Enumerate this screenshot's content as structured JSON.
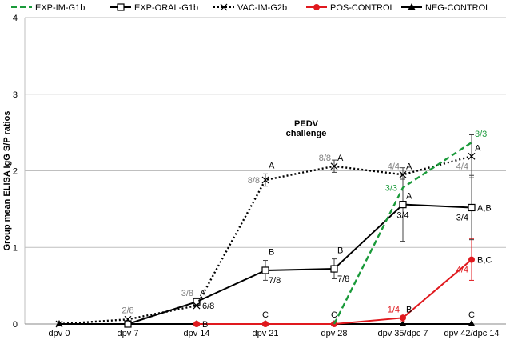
{
  "chart_data": {
    "type": "line",
    "ylabel": "Group mean ELISA IgG S/P ratios",
    "xlabel": "",
    "ylim": [
      0,
      4
    ],
    "yticks": [
      "0",
      "1",
      "2",
      "3",
      "4"
    ],
    "categories": [
      "dpv 0",
      "dpv 7",
      "dpv 14",
      "dpv 21",
      "dpv 28",
      "dpv 35/dpc 7",
      "dpv 42/dpc 14"
    ],
    "grid": true,
    "legend_position": "top",
    "annotation": "PEDV\nchallenge",
    "series": [
      {
        "name": "EXP-IM-G1b",
        "color": "#1a9a3a",
        "style": "dashed",
        "marker": "none",
        "points": [
          [
            4,
            0.0
          ],
          [
            5,
            1.78
          ],
          [
            6,
            2.37
          ]
        ]
      },
      {
        "name": "EXP-ORAL-G1b",
        "color": "#000000",
        "style": "solid",
        "marker": "open-square",
        "points": [
          [
            1,
            0.0
          ],
          [
            2,
            0.29
          ],
          [
            3,
            0.7
          ],
          [
            4,
            0.72
          ],
          [
            5,
            1.56
          ],
          [
            6,
            1.52
          ]
        ],
        "errors": [
          null,
          0.05,
          0.13,
          0.13,
          0.48,
          0.42
        ]
      },
      {
        "name": "VAC-IM-G2b",
        "color": "#000000",
        "style": "dotted",
        "marker": "x",
        "points": [
          [
            0,
            0.0
          ],
          [
            1,
            0.06
          ],
          [
            2,
            0.24
          ],
          [
            3,
            1.88
          ],
          [
            4,
            2.06
          ],
          [
            5,
            1.95
          ],
          [
            6,
            2.19
          ]
        ],
        "errors": [
          null,
          null,
          null,
          0.08,
          0.08,
          0.06,
          0.28
        ]
      },
      {
        "name": "POS-CONTROL",
        "color": "#e0191e",
        "style": "solid",
        "marker": "filled-circle",
        "points": [
          [
            2,
            0.0
          ],
          [
            3,
            0.0
          ],
          [
            4,
            0.0
          ],
          [
            5,
            0.08
          ],
          [
            6,
            0.84
          ]
        ],
        "errors": [
          null,
          null,
          null,
          0.05,
          0.27
        ]
      },
      {
        "name": "NEG-CONTROL",
        "color": "#000000",
        "style": "solid",
        "marker": "filled-triangle",
        "points": [
          [
            0,
            0.0
          ],
          [
            1,
            0.0
          ],
          [
            2,
            0.0
          ],
          [
            3,
            0.0
          ],
          [
            4,
            0.0
          ],
          [
            5,
            0.0
          ],
          [
            6,
            0.0
          ]
        ]
      }
    ],
    "labels": [
      {
        "text": "2/8",
        "x": 1,
        "y": 0.06,
        "color": "#808080",
        "pos": "above"
      },
      {
        "text": "3/8",
        "x": 2,
        "y": 0.29,
        "color": "#808080",
        "pos": "upper-left"
      },
      {
        "text": "A",
        "x": 2,
        "y": 0.29,
        "color": "#000000",
        "pos": "upper-right"
      },
      {
        "text": "6/8",
        "x": 2,
        "y": 0.24,
        "color": "#000000",
        "pos": "right"
      },
      {
        "text": "B",
        "x": 2,
        "y": 0.0,
        "color": "#000000",
        "pos": "right"
      },
      {
        "text": "8/8",
        "x": 3,
        "y": 1.88,
        "color": "#808080",
        "pos": "left"
      },
      {
        "text": "A",
        "x": 3,
        "y": 1.96,
        "color": "#000000",
        "pos": "upper-right"
      },
      {
        "text": "B",
        "x": 3,
        "y": 0.83,
        "color": "#000000",
        "pos": "upper-right"
      },
      {
        "text": "7/8",
        "x": 3,
        "y": 0.7,
        "color": "#000000",
        "pos": "lower-right"
      },
      {
        "text": "C",
        "x": 3,
        "y": 0.0,
        "color": "#000000",
        "pos": "above"
      },
      {
        "text": "8/8",
        "x": 4,
        "y": 2.06,
        "color": "#808080",
        "pos": "upper-left"
      },
      {
        "text": "A",
        "x": 4,
        "y": 2.06,
        "color": "#000000",
        "pos": "upper-right"
      },
      {
        "text": "B",
        "x": 4,
        "y": 0.85,
        "color": "#000000",
        "pos": "upper-right"
      },
      {
        "text": "7/8",
        "x": 4,
        "y": 0.72,
        "color": "#000000",
        "pos": "lower-right"
      },
      {
        "text": "C",
        "x": 4,
        "y": 0.0,
        "color": "#000000",
        "pos": "above"
      },
      {
        "text": "4/4",
        "x": 5,
        "y": 1.95,
        "color": "#808080",
        "pos": "upper-left"
      },
      {
        "text": "A",
        "x": 5,
        "y": 1.95,
        "color": "#000000",
        "pos": "upper-right"
      },
      {
        "text": "3/3",
        "x": 5,
        "y": 1.78,
        "color": "#1a9a3a",
        "pos": "left"
      },
      {
        "text": "A",
        "x": 5,
        "y": 1.56,
        "color": "#000000",
        "pos": "upper-right"
      },
      {
        "text": "3/4",
        "x": 5,
        "y": 1.56,
        "color": "#000000",
        "pos": "below"
      },
      {
        "text": "1/4",
        "x": 5,
        "y": 0.08,
        "color": "#e0191e",
        "pos": "upper-left"
      },
      {
        "text": "B",
        "x": 5,
        "y": 0.08,
        "color": "#000000",
        "pos": "upper-right"
      },
      {
        "text": "C",
        "x": 6,
        "y": 0.0,
        "color": "#000000",
        "pos": "above"
      },
      {
        "text": "3/3",
        "x": 6,
        "y": 2.37,
        "color": "#1a9a3a",
        "pos": "upper-right"
      },
      {
        "text": "A",
        "x": 6,
        "y": 2.19,
        "color": "#000000",
        "pos": "upper-right"
      },
      {
        "text": "4/4",
        "x": 6,
        "y": 2.19,
        "color": "#808080",
        "pos": "lower-left"
      },
      {
        "text": "A,B",
        "x": 6,
        "y": 1.52,
        "color": "#000000",
        "pos": "right"
      },
      {
        "text": "3/4",
        "x": 6,
        "y": 1.52,
        "color": "#000000",
        "pos": "lower-left"
      },
      {
        "text": "B,C",
        "x": 6,
        "y": 0.84,
        "color": "#000000",
        "pos": "right"
      },
      {
        "text": "4/4",
        "x": 6,
        "y": 0.84,
        "color": "#e0191e",
        "pos": "lower-left"
      }
    ]
  }
}
